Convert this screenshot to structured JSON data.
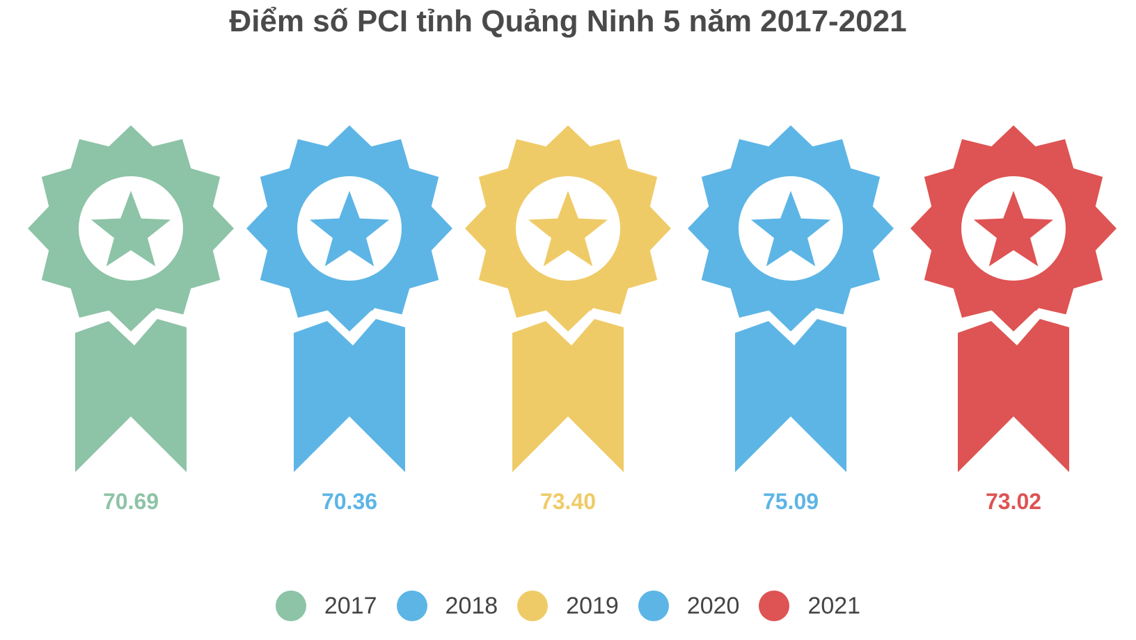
{
  "chart_data": {
    "type": "pictograph",
    "title": "Điểm số PCI tỉnh Quảng Ninh 5 năm 2017-2021",
    "categories": [
      "2017",
      "2018",
      "2019",
      "2020",
      "2021"
    ],
    "values": [
      70.69,
      70.36,
      73.4,
      75.09,
      73.02
    ],
    "value_labels": [
      "70.69",
      "70.36",
      "73.40",
      "75.09",
      "73.02"
    ],
    "colors": [
      "#8DC3A7",
      "#5DB5E5",
      "#EFCB68",
      "#5DB5E5",
      "#DE5353"
    ],
    "icon": "award-ribbon-icon",
    "legend": {
      "position": "bottom",
      "entries": [
        "2017",
        "2018",
        "2019",
        "2020",
        "2021"
      ]
    }
  }
}
